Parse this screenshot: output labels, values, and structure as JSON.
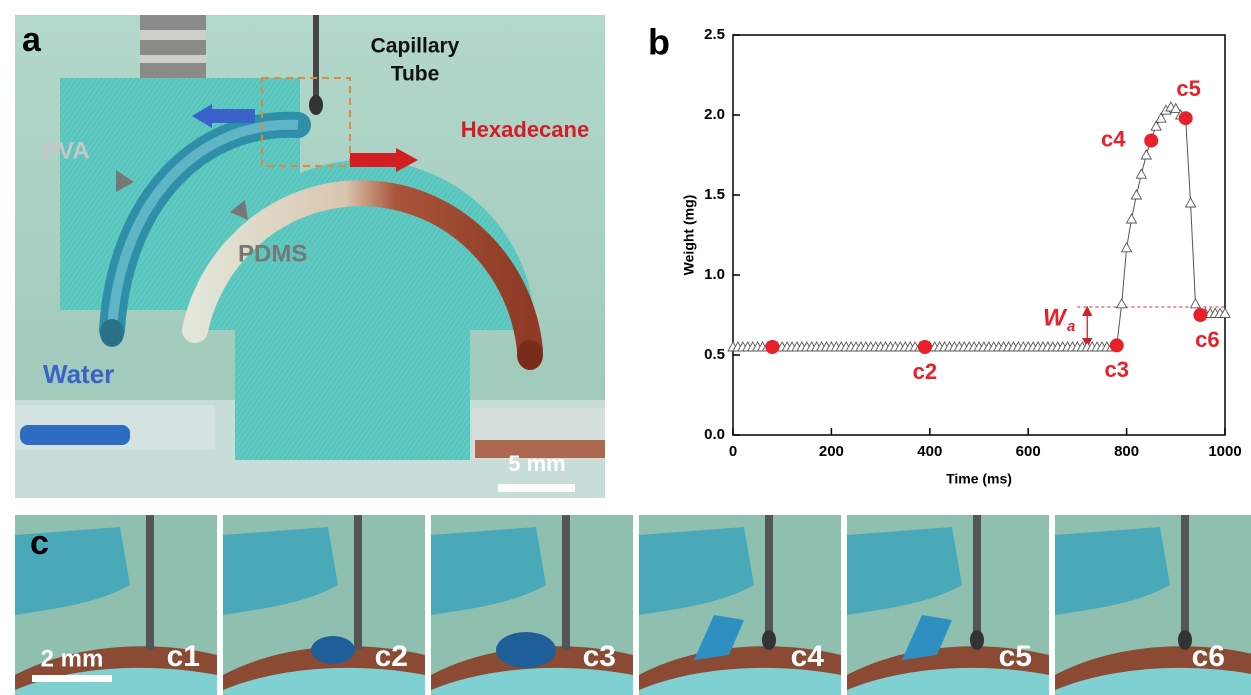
{
  "panel_a": {
    "panel_label": "a",
    "labels": {
      "capillary_1": "Capillary",
      "capillary_2": "Tube",
      "hexadecane": "Hexadecane",
      "pva": "PVA",
      "pdms": "PDMS",
      "water": "Water",
      "scale": "5 mm"
    }
  },
  "chart_data": {
    "type": "line",
    "panel_label": "b",
    "xlabel": "Time (ms)",
    "ylabel": "Weight (mg)",
    "xlim": [
      0,
      1000
    ],
    "ylim": [
      0,
      2.5
    ],
    "xticks": [
      0,
      200,
      400,
      600,
      800,
      1000
    ],
    "yticks": [
      {
        "value": 0,
        "label": "0.0"
      },
      0.5,
      {
        "value": 1,
        "label": "1.0"
      },
      1.5,
      {
        "value": 2,
        "label": "2.0"
      },
      2.5
    ],
    "series": [
      {
        "color": "#555555",
        "marker": "triangle",
        "x": [
          0,
          10,
          20,
          30,
          40,
          50,
          60,
          70,
          80,
          90,
          100,
          110,
          120,
          130,
          140,
          150,
          160,
          170,
          180,
          190,
          200,
          210,
          220,
          230,
          240,
          250,
          260,
          270,
          280,
          290,
          300,
          310,
          320,
          330,
          340,
          350,
          360,
          370,
          380,
          390,
          400,
          410,
          420,
          430,
          440,
          450,
          460,
          470,
          480,
          490,
          500,
          510,
          520,
          530,
          540,
          550,
          560,
          570,
          580,
          590,
          600,
          610,
          620,
          630,
          640,
          650,
          660,
          670,
          680,
          690,
          700,
          710,
          720,
          730,
          740,
          750,
          760,
          770,
          780,
          790,
          800,
          810,
          820,
          830,
          840,
          850,
          860,
          870,
          880,
          890,
          900,
          910,
          920,
          930,
          940,
          950,
          960,
          970,
          980,
          990,
          1000
        ],
        "values": [
          0.55,
          0.55,
          0.55,
          0.55,
          0.55,
          0.55,
          0.55,
          0.55,
          0.55,
          0.55,
          0.55,
          0.55,
          0.55,
          0.55,
          0.55,
          0.55,
          0.55,
          0.55,
          0.55,
          0.55,
          0.55,
          0.55,
          0.55,
          0.55,
          0.55,
          0.55,
          0.55,
          0.55,
          0.55,
          0.55,
          0.55,
          0.55,
          0.55,
          0.55,
          0.55,
          0.55,
          0.55,
          0.55,
          0.55,
          0.55,
          0.55,
          0.55,
          0.55,
          0.55,
          0.55,
          0.55,
          0.55,
          0.55,
          0.55,
          0.55,
          0.55,
          0.55,
          0.55,
          0.55,
          0.55,
          0.55,
          0.55,
          0.55,
          0.55,
          0.55,
          0.55,
          0.55,
          0.55,
          0.55,
          0.55,
          0.55,
          0.55,
          0.55,
          0.55,
          0.55,
          0.55,
          0.55,
          0.55,
          0.55,
          0.55,
          0.55,
          0.55,
          0.55,
          0.56,
          0.82,
          1.17,
          1.35,
          1.5,
          1.63,
          1.75,
          1.85,
          1.93,
          1.98,
          2.03,
          2.05,
          2.04,
          2.0,
          1.98,
          1.45,
          0.82,
          0.76,
          0.76,
          0.76,
          0.76,
          0.76,
          0.76
        ]
      },
      {
        "color": "#e8202a",
        "marker": "circle",
        "x": [
          80,
          390,
          780,
          850,
          920,
          950
        ],
        "values": [
          0.55,
          0.55,
          0.56,
          1.84,
          1.98,
          0.75
        ],
        "point_labels": [
          null,
          "c2",
          "c3",
          "c4",
          "c5",
          "c6"
        ]
      }
    ],
    "annotation": {
      "symbol": "W",
      "subscript": "a",
      "level": 0.8
    }
  },
  "panel_c": {
    "panel_label": "c",
    "scale": "2 mm",
    "frames": [
      "c1",
      "c2",
      "c3",
      "c4",
      "c5",
      "c6"
    ]
  }
}
